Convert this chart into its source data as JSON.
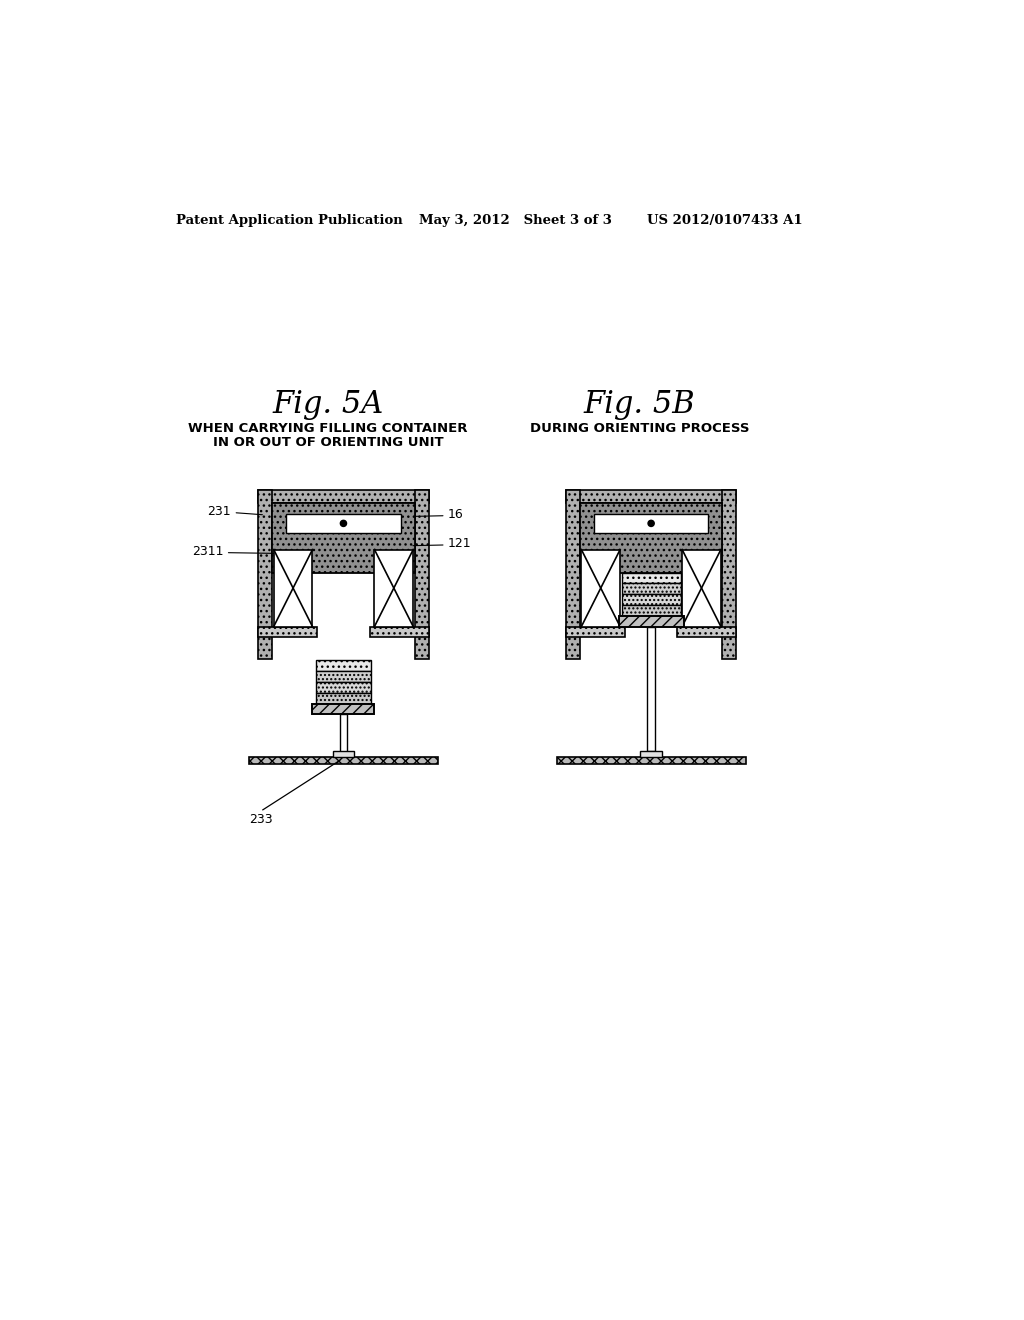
{
  "bg_color": "#ffffff",
  "header_left": "Patent Application Publication",
  "header_mid": "May 3, 2012   Sheet 3 of 3",
  "header_right": "US 2012/0107433 A1",
  "fig5a_title": "Fig. 5A",
  "fig5a_sub1": "WHEN CARRYING FILLING CONTAINER",
  "fig5a_sub2": "IN OR OUT OF ORIENTING UNIT",
  "fig5b_title": "Fig. 5B",
  "fig5b_sub": "DURING ORIENTING PROCESS",
  "label_231": "231",
  "label_2311": "2311",
  "label_16": "16",
  "label_121": "121",
  "label_233": "233",
  "wall_color": "#b0b0b0",
  "inner_gray": "#909090",
  "coil_white": "#ffffff",
  "foot_hatch_color": "#c8c8c8",
  "container_dot_color": "#d8d8d8",
  "container_dense_color": "#c0c0c0"
}
